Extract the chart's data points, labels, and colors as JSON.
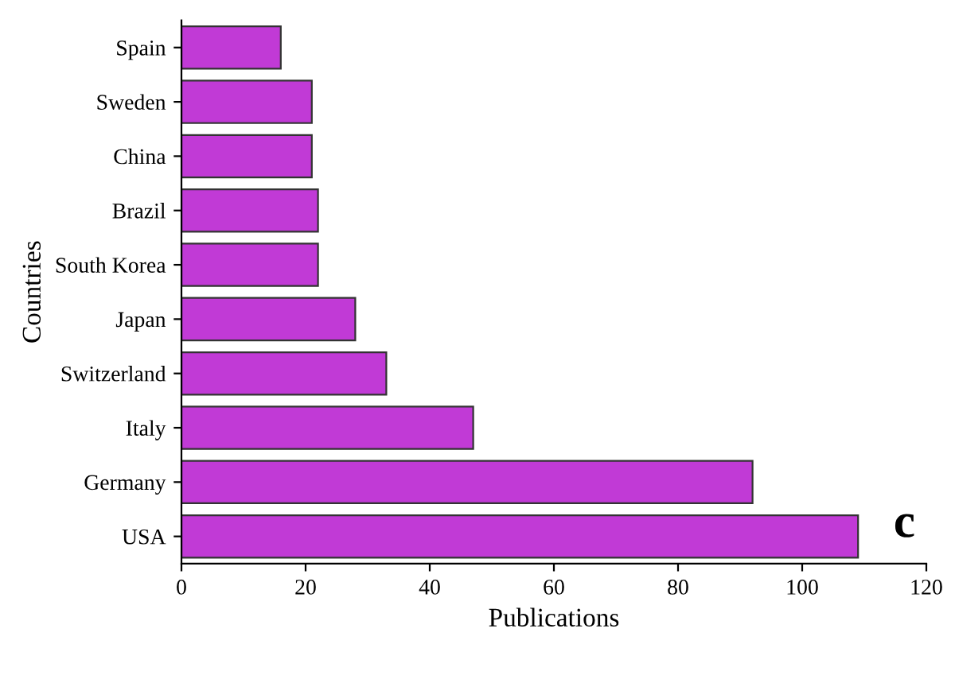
{
  "chart_data": {
    "type": "bar",
    "orientation": "horizontal",
    "xlabel": "Publications",
    "ylabel": "Countries",
    "categories": [
      "Spain",
      "Sweden",
      "China",
      "Brazil",
      "South Korea",
      "Japan",
      "Switzerland",
      "Italy",
      "Germany",
      "USA"
    ],
    "values": [
      16,
      21,
      21,
      22,
      22,
      28,
      33,
      47,
      92,
      109
    ],
    "color": "#c13ad6",
    "xlim": [
      0,
      120
    ],
    "xticks": [
      0,
      20,
      40,
      60,
      80,
      100,
      120
    ],
    "annotations": [
      "c"
    ],
    "grid": false
  }
}
